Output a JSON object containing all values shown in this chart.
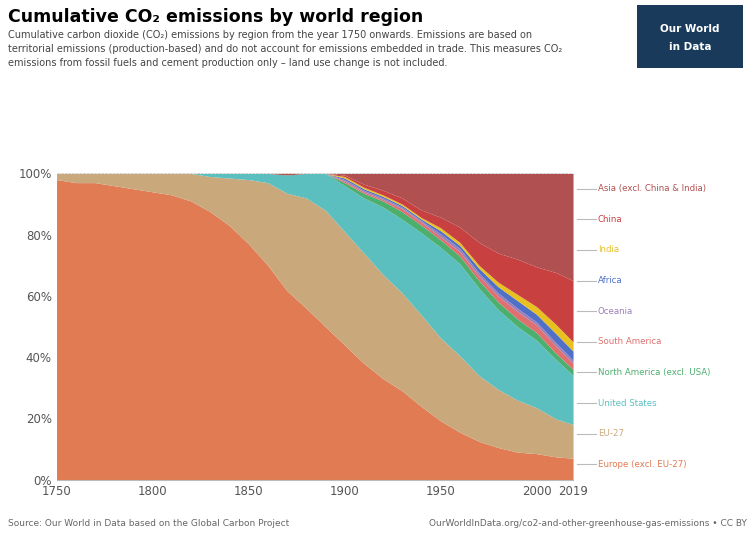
{
  "title": "Cumulative CO₂ emissions by world region",
  "subtitle_line1": "Cumulative carbon dioxide (CO₂) emissions by region from the year 1750 onwards. Emissions are based on",
  "subtitle_line2": "territorial emissions (production-based) and do not account for emissions embedded in trade. This measures CO₂",
  "subtitle_line3": "emissions from fossil fuels and cement production only – land use change is not included.",
  "source_left": "Source: Our World in Data based on the Global Carbon Project",
  "source_right": "OurWorldInData.org/co2-and-other-greenhouse-gas-emissions • CC BY",
  "years": [
    1750,
    1760,
    1770,
    1780,
    1790,
    1800,
    1810,
    1820,
    1830,
    1840,
    1850,
    1860,
    1870,
    1880,
    1890,
    1900,
    1910,
    1920,
    1930,
    1940,
    1950,
    1960,
    1970,
    1980,
    1990,
    2000,
    2010,
    2019
  ],
  "regions": [
    "Europe (excl. EU-27)",
    "EU-27",
    "United States",
    "North America (excl. USA)",
    "South America",
    "Oceania",
    "Africa",
    "India",
    "China",
    "Asia (excl. China & India)"
  ],
  "colors": {
    "Europe (excl. EU-27)": "#E07B54",
    "EU-27": "#C9A87C",
    "United States": "#5BBFBF",
    "North America (excl. USA)": "#4CAF6E",
    "South America": "#E07070",
    "Oceania": "#9B7FBA",
    "Africa": "#5070C8",
    "India": "#E8C020",
    "China": "#C84040",
    "Asia (excl. China & India)": "#B05050"
  },
  "legend_colors": {
    "Asia (excl. China & India)": "#B05050",
    "China": "#C84040",
    "India": "#E8C020",
    "Africa": "#5070C8",
    "Oceania": "#9B7FBA",
    "South America": "#E07070",
    "North America (excl. USA)": "#4CAF6E",
    "United States": "#5BBFBF",
    "EU-27": "#C9A87C",
    "Europe (excl. EU-27)": "#E07B54"
  },
  "data": {
    "Europe (excl. EU-27)": [
      98.0,
      97.0,
      97.0,
      96.0,
      95.0,
      94.0,
      93.0,
      91.0,
      87.5,
      83.0,
      77.0,
      70.0,
      62.0,
      56.0,
      50.0,
      44.0,
      38.0,
      33.0,
      29.0,
      24.0,
      19.5,
      15.5,
      12.5,
      10.5,
      9.0,
      8.5,
      7.5,
      7.0
    ],
    "EU-27": [
      2.0,
      3.0,
      3.0,
      4.0,
      5.0,
      6.0,
      7.0,
      9.0,
      11.5,
      15.5,
      21.0,
      27.0,
      32.0,
      36.0,
      38.0,
      37.0,
      36.0,
      34.0,
      32.0,
      30.0,
      27.5,
      25.0,
      21.5,
      19.0,
      17.0,
      15.0,
      12.5,
      11.0
    ],
    "United States": [
      0.0,
      0.0,
      0.0,
      0.0,
      0.0,
      0.0,
      0.0,
      0.0,
      1.0,
      1.5,
      2.0,
      3.0,
      6.0,
      8.0,
      12.0,
      15.0,
      18.0,
      22.0,
      24.0,
      27.0,
      30.0,
      30.0,
      28.5,
      26.0,
      24.0,
      22.0,
      19.5,
      16.0
    ],
    "North America (excl. USA)": [
      0.0,
      0.0,
      0.0,
      0.0,
      0.0,
      0.0,
      0.0,
      0.0,
      0.0,
      0.0,
      0.0,
      0.0,
      0.0,
      0.0,
      0.0,
      1.0,
      1.5,
      2.0,
      2.5,
      2.5,
      2.5,
      2.5,
      2.5,
      2.5,
      2.5,
      2.5,
      2.0,
      2.0
    ],
    "South America": [
      0.0,
      0.0,
      0.0,
      0.0,
      0.0,
      0.0,
      0.0,
      0.0,
      0.0,
      0.0,
      0.0,
      0.0,
      0.0,
      0.0,
      0.0,
      0.5,
      0.5,
      0.5,
      1.0,
      1.0,
      1.0,
      1.5,
      1.5,
      2.0,
      2.5,
      2.5,
      2.5,
      2.0
    ],
    "Oceania": [
      0.0,
      0.0,
      0.0,
      0.0,
      0.0,
      0.0,
      0.0,
      0.0,
      0.0,
      0.0,
      0.0,
      0.0,
      0.0,
      0.0,
      0.0,
      0.5,
      0.5,
      0.5,
      0.5,
      0.5,
      1.0,
      1.0,
      1.0,
      1.0,
      1.0,
      1.0,
      1.0,
      1.0
    ],
    "Africa": [
      0.0,
      0.0,
      0.0,
      0.0,
      0.0,
      0.0,
      0.0,
      0.0,
      0.0,
      0.0,
      0.0,
      0.0,
      0.0,
      0.0,
      0.0,
      0.5,
      0.5,
      0.5,
      0.5,
      0.5,
      1.0,
      1.0,
      1.5,
      2.0,
      2.5,
      2.5,
      3.0,
      3.0
    ],
    "India": [
      0.0,
      0.0,
      0.0,
      0.0,
      0.0,
      0.0,
      0.0,
      0.0,
      0.0,
      0.0,
      0.0,
      0.0,
      0.0,
      0.0,
      0.0,
      0.5,
      0.5,
      0.5,
      0.5,
      0.5,
      1.0,
      1.0,
      1.0,
      1.5,
      2.0,
      2.5,
      3.0,
      3.0
    ],
    "China": [
      0.0,
      0.0,
      0.0,
      0.0,
      0.0,
      0.0,
      0.0,
      0.0,
      0.0,
      0.0,
      0.0,
      0.0,
      0.0,
      0.0,
      0.0,
      0.5,
      1.0,
      1.5,
      2.0,
      2.5,
      3.5,
      5.0,
      7.5,
      9.5,
      11.5,
      13.0,
      17.0,
      20.0
    ],
    "Asia (excl. China & India)": [
      0.0,
      0.0,
      0.0,
      0.0,
      0.0,
      0.0,
      0.0,
      0.0,
      0.0,
      0.0,
      0.0,
      0.0,
      0.5,
      0.0,
      0.0,
      0.5,
      3.5,
      5.5,
      8.0,
      12.0,
      14.5,
      17.5,
      22.5,
      26.0,
      28.0,
      30.5,
      32.5,
      35.0
    ]
  }
}
